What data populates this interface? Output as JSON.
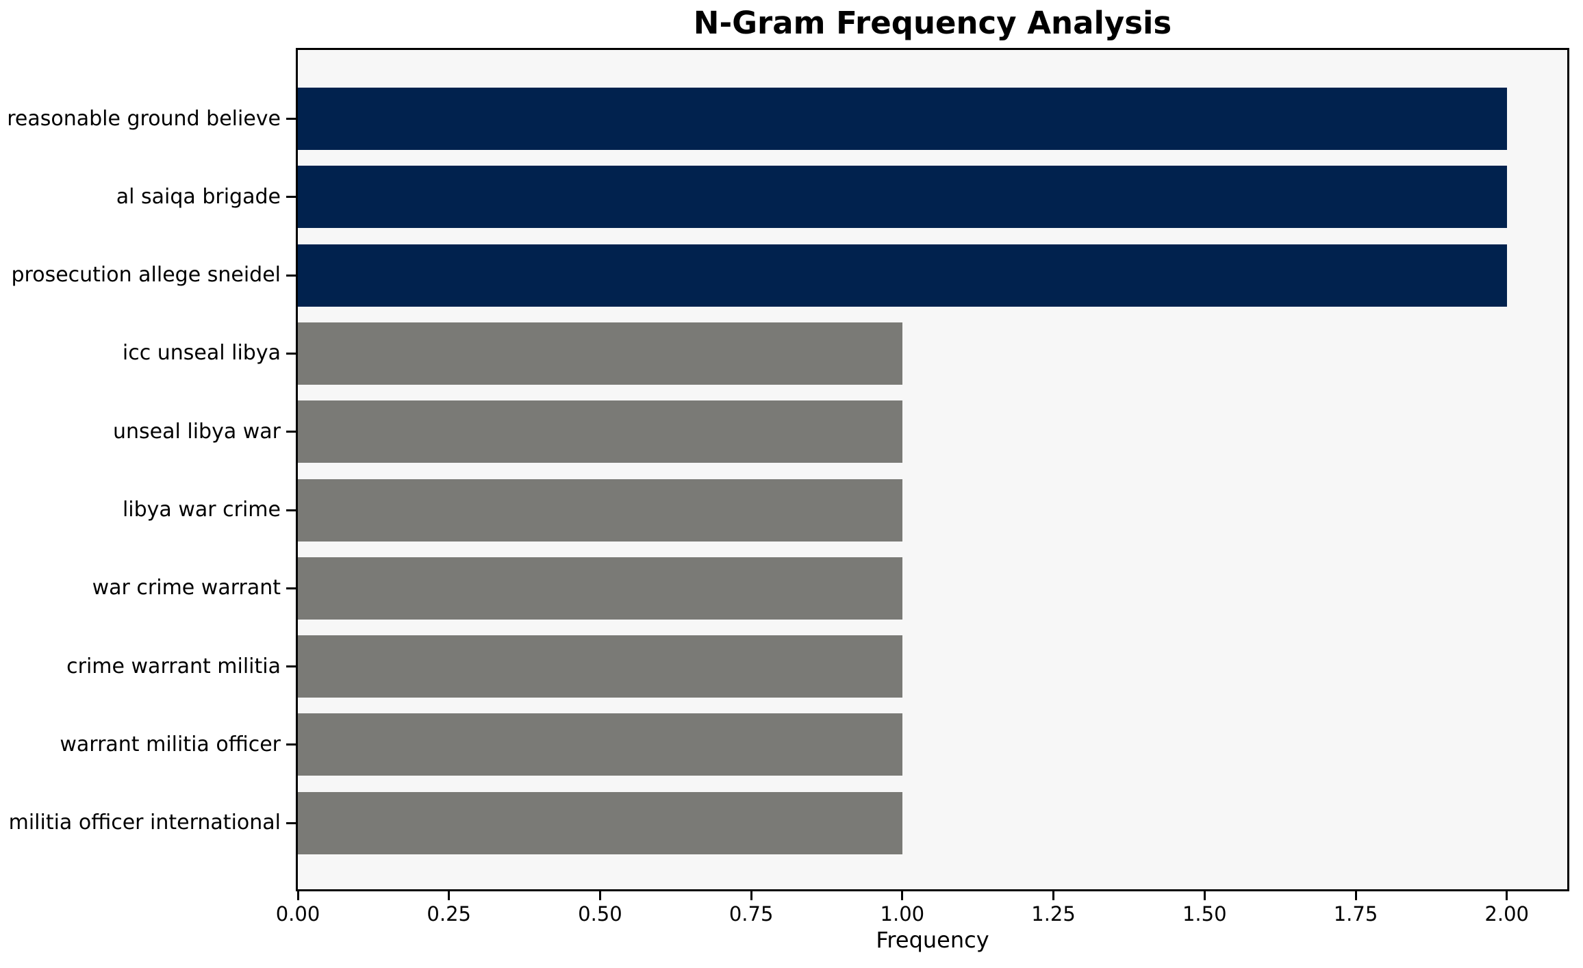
{
  "chart_data": {
    "type": "bar",
    "orientation": "horizontal",
    "title": "N-Gram Frequency Analysis",
    "xlabel": "Frequency",
    "ylabel": "",
    "categories": [
      "reasonable ground believe",
      "al saiqa brigade",
      "prosecution allege sneidel",
      "icc unseal libya",
      "unseal libya war",
      "libya war crime",
      "war crime warrant",
      "crime warrant militia",
      "warrant militia officer",
      "militia officer international"
    ],
    "values": [
      2,
      2,
      2,
      1,
      1,
      1,
      1,
      1,
      1,
      1
    ],
    "bar_colors": [
      "#01224e",
      "#01224e",
      "#01224e",
      "#7a7a76",
      "#7a7a76",
      "#7a7a76",
      "#7a7a76",
      "#7a7a76",
      "#7a7a76",
      "#7a7a76"
    ],
    "xlim": [
      0,
      2.1
    ],
    "x_tick_values": [
      0,
      0.25,
      0.5,
      0.75,
      1.0,
      1.25,
      1.5,
      1.75,
      2.0
    ],
    "x_tick_labels": [
      "0.00",
      "0.25",
      "0.50",
      "0.75",
      "1.00",
      "1.25",
      "1.50",
      "1.75",
      "2.00"
    ],
    "grid": false,
    "legend": null,
    "plot_background": "#f7f7f7",
    "figure_background": "#ffffff",
    "text_color": "#000000"
  }
}
